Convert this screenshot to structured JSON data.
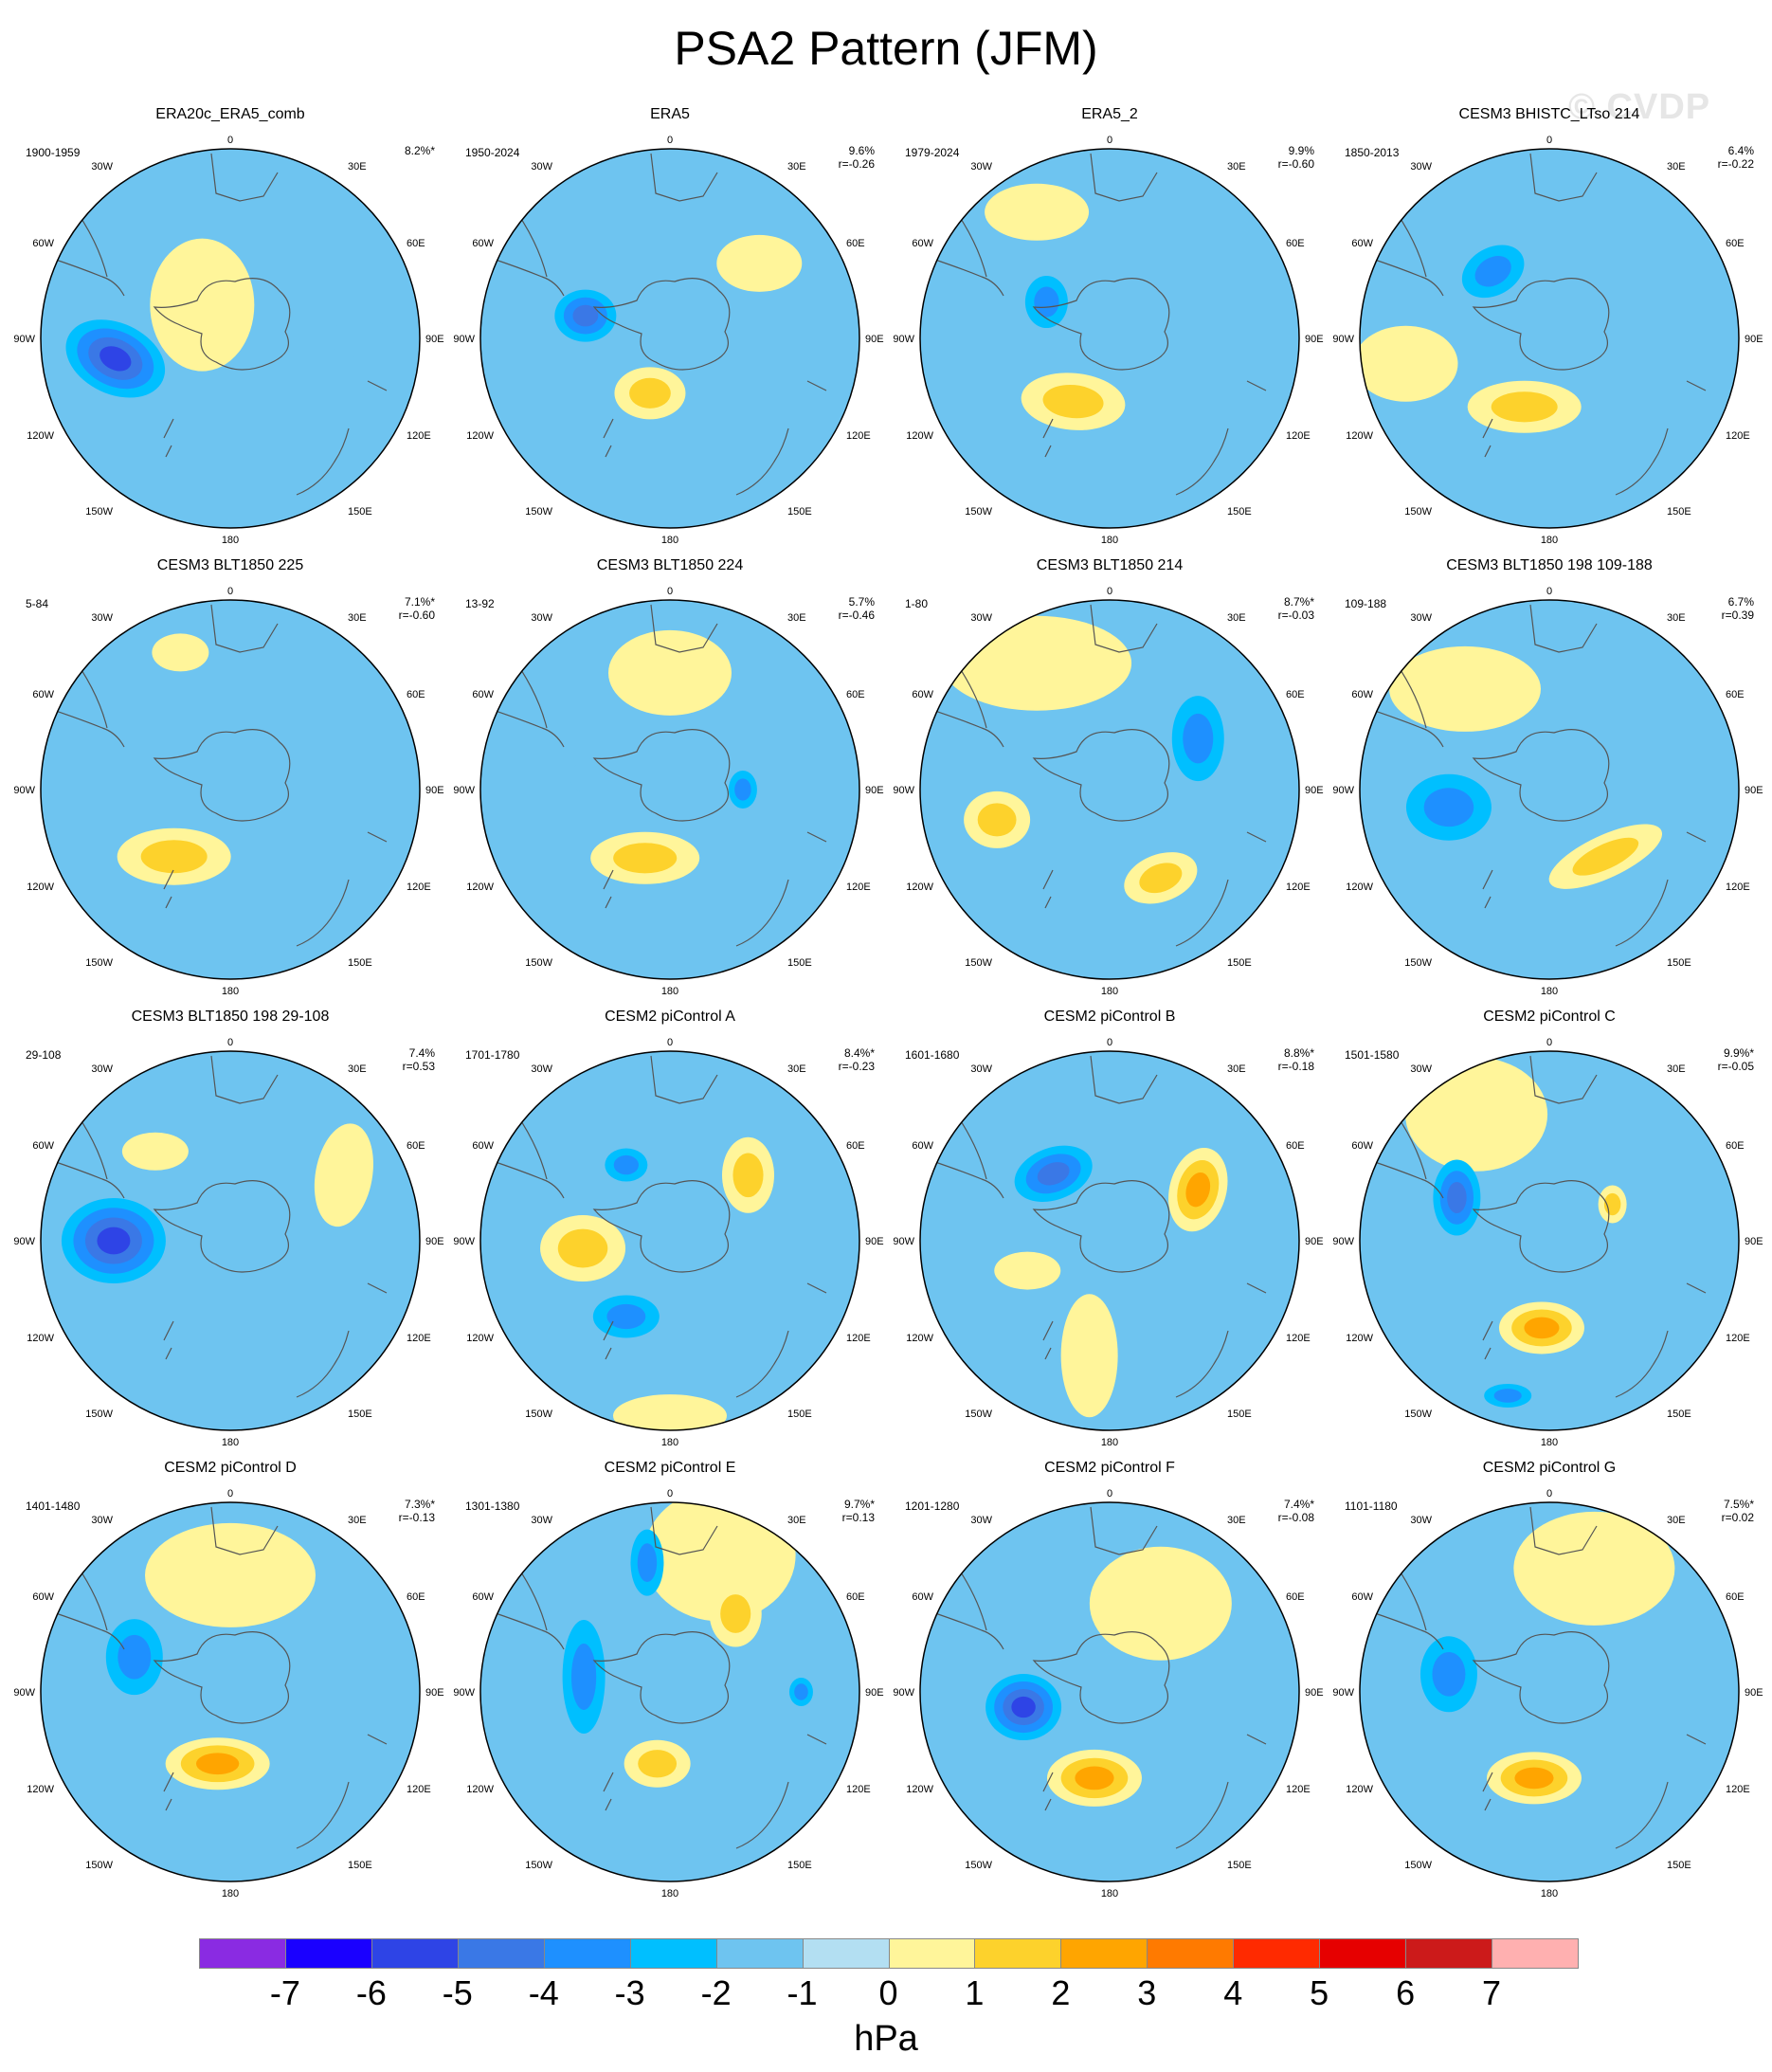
{
  "title": "PSA2 Pattern (JFM)",
  "watermark": "© CVDP",
  "map_labels": {
    "top": "0",
    "bottom": "180",
    "w30": "30W",
    "e30": "30E",
    "w60": "60W",
    "e60": "60E",
    "w90": "90W",
    "e90": "90E",
    "w120": "120W",
    "e120": "120E",
    "w150": "150W",
    "e150": "150E"
  },
  "panels": [
    {
      "title": "ERA20c_ERA5_comb",
      "period": "1900-1959",
      "pct": "8.2%*",
      "r": "",
      "blobs": [
        {
          "lon": -100,
          "lat": -50,
          "rx": 110,
          "ry": 75,
          "rot": 25,
          "v": -4
        },
        {
          "lon": -40,
          "lat": -75,
          "rx": 110,
          "ry": 140,
          "rot": 0,
          "v": 1
        },
        {
          "lon": 90,
          "lat": -45,
          "rx": 70,
          "ry": 40,
          "rot": 0,
          "v": 0
        }
      ]
    },
    {
      "title": "ERA5",
      "period": "1950-2024",
      "pct": "9.6%",
      "r": "r=-0.26",
      "blobs": [
        {
          "lon": -75,
          "lat": -60,
          "rx": 65,
          "ry": 55,
          "rot": 0,
          "v": -3
        },
        {
          "lon": -160,
          "lat": -70,
          "rx": 75,
          "ry": 55,
          "rot": 0,
          "v": 2
        },
        {
          "lon": 50,
          "lat": -50,
          "rx": 90,
          "ry": 60,
          "rot": 0,
          "v": 1
        }
      ]
    },
    {
      "title": "ERA5_2",
      "period": "1979-2024",
      "pct": "9.9%",
      "r": "r=-0.60",
      "blobs": [
        {
          "lon": -150,
          "lat": -65,
          "rx": 110,
          "ry": 60,
          "rot": 5,
          "v": 2
        },
        {
          "lon": -60,
          "lat": -65,
          "rx": 45,
          "ry": 55,
          "rot": 0,
          "v": -2
        },
        {
          "lon": -30,
          "lat": -40,
          "rx": 110,
          "ry": 60,
          "rot": 0,
          "v": 1
        }
      ]
    },
    {
      "title": "CESM3 BHISTC_LTso 214",
      "period": "1850-2013",
      "pct": "6.4%",
      "r": "r=-0.22",
      "blobs": [
        {
          "lon": -40,
          "lat": -60,
          "rx": 70,
          "ry": 50,
          "rot": -30,
          "v": -2
        },
        {
          "lon": -160,
          "lat": -65,
          "rx": 120,
          "ry": 55,
          "rot": 0,
          "v": 2
        },
        {
          "lon": -100,
          "lat": -40,
          "rx": 110,
          "ry": 80,
          "rot": 0,
          "v": 1
        }
      ]
    },
    {
      "title": "CESM3 BLT1850 225",
      "period": "5-84",
      "pct": "7.1%*",
      "r": "r=-0.60",
      "blobs": [
        {
          "lon": -140,
          "lat": -60,
          "rx": 120,
          "ry": 60,
          "rot": 0,
          "v": 2
        },
        {
          "lon": -20,
          "lat": -40,
          "rx": 60,
          "ry": 40,
          "rot": 0,
          "v": 1
        },
        {
          "lon": -170,
          "lat": -30,
          "rx": 140,
          "ry": 30,
          "rot": 0,
          "v": 0
        }
      ]
    },
    {
      "title": "CESM3 BLT1850 224",
      "period": "13-92",
      "pct": "5.7%",
      "r": "r=-0.46",
      "blobs": [
        {
          "lon": -160,
          "lat": -65,
          "rx": 115,
          "ry": 55,
          "rot": 0,
          "v": 2
        },
        {
          "lon": 0,
          "lat": -50,
          "rx": 130,
          "ry": 90,
          "rot": 0,
          "v": 1
        },
        {
          "lon": 90,
          "lat": -65,
          "rx": 30,
          "ry": 40,
          "rot": 0,
          "v": -2
        },
        {
          "lon": -80,
          "lat": -65,
          "rx": 60,
          "ry": 40,
          "rot": 0,
          "v": 0
        }
      ]
    },
    {
      "title": "CESM3 BLT1850 214",
      "period": "1-80",
      "pct": "8.7%*",
      "r": "r=-0.03",
      "blobs": [
        {
          "lon": -105,
          "lat": -50,
          "rx": 70,
          "ry": 60,
          "rot": 0,
          "v": 2
        },
        {
          "lon": 150,
          "lat": -55,
          "rx": 80,
          "ry": 50,
          "rot": -20,
          "v": 2
        },
        {
          "lon": -20,
          "lat": -50,
          "rx": 35,
          "ry": 35,
          "rot": 0,
          "v": 1
        },
        {
          "lon": 60,
          "lat": -55,
          "rx": 55,
          "ry": 90,
          "rot": 0,
          "v": -2
        },
        {
          "lon": -30,
          "lat": -40,
          "rx": 200,
          "ry": 100,
          "rot": 0,
          "v": 1
        }
      ]
    },
    {
      "title": "CESM3 BLT1850 198 109-188",
      "period": "109-188",
      "pct": "6.7%",
      "r": "r=0.39",
      "blobs": [
        {
          "lon": -100,
          "lat": -55,
          "rx": 90,
          "ry": 70,
          "rot": 0,
          "v": -2
        },
        {
          "lon": 140,
          "lat": -60,
          "rx": 130,
          "ry": 45,
          "rot": -25,
          "v": 2
        },
        {
          "lon": -40,
          "lat": -45,
          "rx": 160,
          "ry": 90,
          "rot": 0,
          "v": 1
        }
      ]
    },
    {
      "title": "CESM3 BLT1850 198 29-108",
      "period": "29-108",
      "pct": "7.4%",
      "r": "r=0.53",
      "blobs": [
        {
          "lon": -90,
          "lat": -50,
          "rx": 110,
          "ry": 90,
          "rot": 0,
          "v": -4
        },
        {
          "lon": 60,
          "lat": -45,
          "rx": 60,
          "ry": 110,
          "rot": 10,
          "v": 1
        },
        {
          "lon": -40,
          "lat": -50,
          "rx": 70,
          "ry": 40,
          "rot": 0,
          "v": 1
        }
      ]
    },
    {
      "title": "CESM2 piControl A",
      "period": "1701-1780",
      "pct": "8.4%*",
      "r": "r=-0.23",
      "blobs": [
        {
          "lon": -95,
          "lat": -60,
          "rx": 90,
          "ry": 70,
          "rot": 0,
          "v": 2
        },
        {
          "lon": -30,
          "lat": -60,
          "rx": 45,
          "ry": 35,
          "rot": 0,
          "v": -2
        },
        {
          "lon": 50,
          "lat": -55,
          "rx": 55,
          "ry": 80,
          "rot": 0,
          "v": 2
        },
        {
          "lon": -150,
          "lat": -60,
          "rx": 70,
          "ry": 45,
          "rot": 0,
          "v": -2
        },
        {
          "lon": 180,
          "lat": -30,
          "rx": 120,
          "ry": 45,
          "rot": 0,
          "v": 1
        }
      ]
    },
    {
      "title": "CESM2 piControl B",
      "period": "1601-1680",
      "pct": "8.8%*",
      "r": "r=-0.18",
      "blobs": [
        {
          "lon": -40,
          "lat": -60,
          "rx": 85,
          "ry": 55,
          "rot": -20,
          "v": -3
        },
        {
          "lon": 60,
          "lat": -55,
          "rx": 60,
          "ry": 90,
          "rot": 15,
          "v": 3
        },
        {
          "lon": -170,
          "lat": -50,
          "rx": 60,
          "ry": 130,
          "rot": 0,
          "v": 1
        },
        {
          "lon": -110,
          "lat": -60,
          "rx": 70,
          "ry": 40,
          "rot": 0,
          "v": 1
        }
      ]
    },
    {
      "title": "CESM2 piControl C",
      "period": "1501-1580",
      "pct": "9.9%*",
      "r": "r=-0.05",
      "blobs": [
        {
          "lon": -65,
          "lat": -55,
          "rx": 50,
          "ry": 80,
          "rot": 0,
          "v": -3
        },
        {
          "lon": -175,
          "lat": -60,
          "rx": 90,
          "ry": 55,
          "rot": 0,
          "v": 3
        },
        {
          "lon": -165,
          "lat": -35,
          "rx": 50,
          "ry": 25,
          "rot": 0,
          "v": -2
        },
        {
          "lon": 60,
          "lat": -65,
          "rx": 30,
          "ry": 40,
          "rot": 0,
          "v": 2
        },
        {
          "lon": -30,
          "lat": -40,
          "rx": 150,
          "ry": 120,
          "rot": 0,
          "v": 1
        }
      ]
    },
    {
      "title": "CESM2 piControl D",
      "period": "1401-1480",
      "pct": "7.3%*",
      "r": "r=-0.13",
      "blobs": [
        {
          "lon": -70,
          "lat": -55,
          "rx": 60,
          "ry": 80,
          "rot": 0,
          "v": -2
        },
        {
          "lon": -170,
          "lat": -65,
          "rx": 110,
          "ry": 55,
          "rot": 0,
          "v": 3
        },
        {
          "lon": 0,
          "lat": -50,
          "rx": 180,
          "ry": 110,
          "rot": 0,
          "v": 1
        }
      ]
    },
    {
      "title": "CESM2 piControl E",
      "period": "1301-1380",
      "pct": "9.7%*",
      "r": "r=0.13",
      "blobs": [
        {
          "lon": -80,
          "lat": -60,
          "rx": 45,
          "ry": 120,
          "rot": 0,
          "v": -2
        },
        {
          "lon": -10,
          "lat": -45,
          "rx": 35,
          "ry": 70,
          "rot": 0,
          "v": -2
        },
        {
          "lon": -170,
          "lat": -65,
          "rx": 70,
          "ry": 50,
          "rot": 0,
          "v": 2
        },
        {
          "lon": 40,
          "lat": -55,
          "rx": 55,
          "ry": 70,
          "rot": 0,
          "v": 2
        },
        {
          "lon": 90,
          "lat": -45,
          "rx": 25,
          "ry": 30,
          "rot": 0,
          "v": -2
        },
        {
          "lon": 20,
          "lat": -40,
          "rx": 160,
          "ry": 140,
          "rot": 0,
          "v": 1
        }
      ]
    },
    {
      "title": "CESM2 piControl F",
      "period": "1201-1280",
      "pct": "7.4%*",
      "r": "r=-0.08",
      "blobs": [
        {
          "lon": -100,
          "lat": -60,
          "rx": 80,
          "ry": 70,
          "rot": 0,
          "v": -4
        },
        {
          "lon": -170,
          "lat": -60,
          "rx": 100,
          "ry": 60,
          "rot": 0,
          "v": 3
        },
        {
          "lon": 30,
          "lat": -55,
          "rx": 150,
          "ry": 120,
          "rot": 0,
          "v": 1
        }
      ]
    },
    {
      "title": "CESM2 piControl G",
      "period": "1101-1180",
      "pct": "7.5%*",
      "r": "r=0.02",
      "blobs": [
        {
          "lon": -80,
          "lat": -55,
          "rx": 60,
          "ry": 80,
          "rot": 0,
          "v": -2
        },
        {
          "lon": -170,
          "lat": -60,
          "rx": 100,
          "ry": 55,
          "rot": 0,
          "v": 3
        },
        {
          "lon": 20,
          "lat": -45,
          "rx": 170,
          "ry": 120,
          "rot": 0,
          "v": 1
        }
      ]
    }
  ],
  "colorbar": {
    "colors": [
      "#8a2be2",
      "#1a00ff",
      "#2e44e6",
      "#3a78e6",
      "#1e90ff",
      "#00bfff",
      "#6ec4f0",
      "#b3dff2",
      "#fff59a",
      "#fdd22c",
      "#ffa500",
      "#ff7a00",
      "#ff2a00",
      "#e60000",
      "#cc1a1a",
      "#ffb0b0"
    ],
    "ticks": [
      "-7",
      "-6",
      "-5",
      "-4",
      "-3",
      "-2",
      "-1",
      "0",
      "1",
      "2",
      "3",
      "4",
      "5",
      "6",
      "7"
    ],
    "units": "hPa"
  }
}
